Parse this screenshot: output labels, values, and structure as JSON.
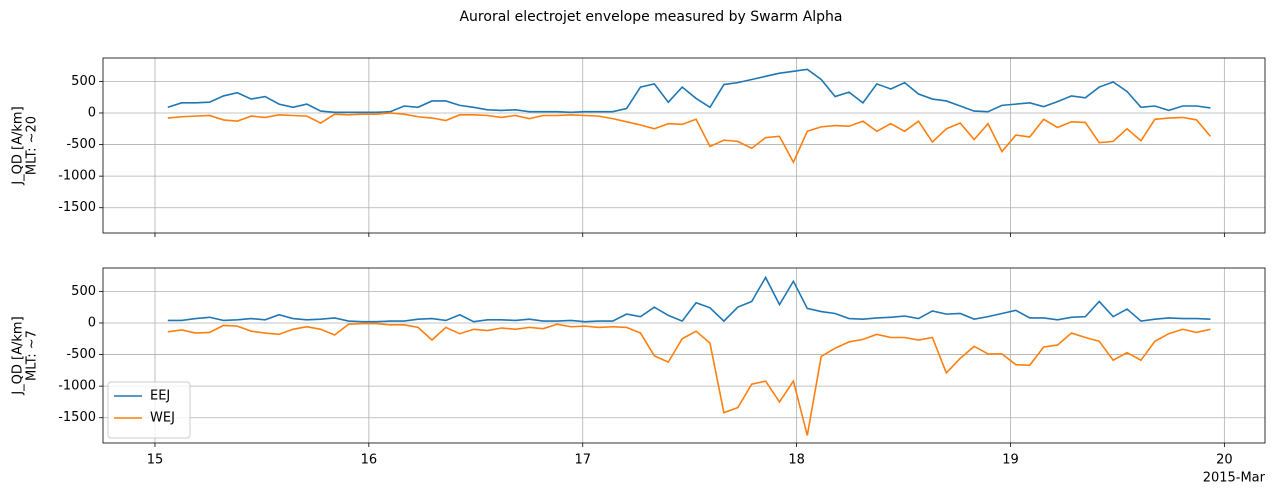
{
  "title": "Auroral electrojet envelope measured by Swarm Alpha",
  "chart_data": [
    {
      "type": "line",
      "ylabel": [
        "J_QD [A/km]",
        "MLT: ~20"
      ],
      "x": [
        15.06,
        15.125,
        15.19,
        15.255,
        15.32,
        15.385,
        15.45,
        15.515,
        15.58,
        15.645,
        15.71,
        15.775,
        15.84,
        15.905,
        15.97,
        16.035,
        16.1,
        16.165,
        16.23,
        16.295,
        16.36,
        16.425,
        16.49,
        16.555,
        16.62,
        16.685,
        16.75,
        16.815,
        16.88,
        16.945,
        17.01,
        17.075,
        17.14,
        17.205,
        17.27,
        17.335,
        17.4,
        17.465,
        17.53,
        17.595,
        17.66,
        17.725,
        17.79,
        17.855,
        17.92,
        17.985,
        18.05,
        18.115,
        18.18,
        18.245,
        18.31,
        18.375,
        18.44,
        18.505,
        18.57,
        18.635,
        18.7,
        18.765,
        18.83,
        18.895,
        18.96,
        19.025,
        19.09,
        19.155,
        19.22,
        19.285,
        19.35,
        19.415,
        19.48,
        19.545,
        19.61,
        19.675,
        19.74,
        19.805,
        19.87,
        19.935
      ],
      "series": [
        {
          "color": "#1f77b4",
          "values": [
            90,
            160,
            160,
            170,
            270,
            320,
            220,
            260,
            140,
            90,
            140,
            30,
            10,
            10,
            10,
            10,
            20,
            110,
            90,
            190,
            190,
            120,
            90,
            50,
            40,
            50,
            20,
            20,
            20,
            10,
            20,
            20,
            20,
            70,
            410,
            460,
            170,
            410,
            230,
            90,
            450,
            480,
            530,
            580,
            630,
            660,
            690,
            530,
            260,
            330,
            160,
            460,
            380,
            480,
            300,
            220,
            190,
            110,
            30,
            20,
            120,
            140,
            160,
            100,
            180,
            270,
            240,
            410,
            490,
            340,
            90,
            110,
            40,
            110,
            110,
            80
          ]
        },
        {
          "color": "#ff7f0e",
          "values": [
            -80,
            -60,
            -50,
            -40,
            -110,
            -130,
            -50,
            -70,
            -30,
            -40,
            -50,
            -160,
            -20,
            -30,
            -20,
            -20,
            0,
            -20,
            -60,
            -80,
            -120,
            -30,
            -30,
            -40,
            -70,
            -40,
            -90,
            -40,
            -40,
            -30,
            -40,
            -50,
            -90,
            -140,
            -190,
            -250,
            -170,
            -180,
            -100,
            -530,
            -430,
            -450,
            -560,
            -390,
            -370,
            -780,
            -290,
            -220,
            -200,
            -210,
            -130,
            -290,
            -170,
            -290,
            -130,
            -460,
            -250,
            -160,
            -420,
            -170,
            -610,
            -350,
            -380,
            -100,
            -230,
            -140,
            -150,
            -470,
            -450,
            -250,
            -440,
            -100,
            -80,
            -70,
            -110,
            -370
          ]
        }
      ],
      "xlim": [
        14.757,
        20.19
      ],
      "xticks": [
        15,
        16,
        17,
        18,
        19,
        20
      ],
      "ylim": [
        -1900,
        870
      ],
      "yticks": [
        -1500,
        -1000,
        -500,
        0,
        500
      ],
      "grid": true
    },
    {
      "type": "line",
      "ylabel": [
        "J_QD [A/km]",
        "MLT: ~7"
      ],
      "x_offset_label": "2015-Mar",
      "x": [
        15.06,
        15.125,
        15.19,
        15.255,
        15.32,
        15.385,
        15.45,
        15.515,
        15.58,
        15.645,
        15.71,
        15.775,
        15.84,
        15.905,
        15.97,
        16.035,
        16.1,
        16.165,
        16.23,
        16.295,
        16.36,
        16.425,
        16.49,
        16.555,
        16.62,
        16.685,
        16.75,
        16.815,
        16.88,
        16.945,
        17.01,
        17.075,
        17.14,
        17.205,
        17.27,
        17.335,
        17.4,
        17.465,
        17.53,
        17.595,
        17.66,
        17.725,
        17.79,
        17.855,
        17.92,
        17.985,
        18.05,
        18.115,
        18.18,
        18.245,
        18.31,
        18.375,
        18.44,
        18.505,
        18.57,
        18.635,
        18.7,
        18.765,
        18.83,
        18.895,
        18.96,
        19.025,
        19.09,
        19.155,
        19.22,
        19.285,
        19.35,
        19.415,
        19.48,
        19.545,
        19.61,
        19.675,
        19.74,
        19.805,
        19.87,
        19.935
      ],
      "series": [
        {
          "name": "EEJ",
          "color": "#1f77b4",
          "values": [
            40,
            40,
            70,
            90,
            40,
            50,
            70,
            50,
            130,
            70,
            50,
            60,
            80,
            30,
            20,
            20,
            30,
            30,
            60,
            70,
            40,
            130,
            20,
            50,
            50,
            40,
            60,
            30,
            30,
            40,
            20,
            30,
            30,
            140,
            100,
            250,
            120,
            30,
            320,
            240,
            30,
            250,
            340,
            720,
            290,
            660,
            230,
            180,
            150,
            70,
            60,
            80,
            90,
            110,
            70,
            190,
            140,
            150,
            60,
            100,
            150,
            200,
            80,
            80,
            50,
            90,
            100,
            340,
            100,
            220,
            30,
            60,
            80,
            70,
            70,
            60
          ]
        },
        {
          "name": "WEJ",
          "color": "#ff7f0e",
          "values": [
            -140,
            -110,
            -160,
            -150,
            -40,
            -50,
            -130,
            -160,
            -180,
            -100,
            -60,
            -100,
            -190,
            -20,
            -10,
            -10,
            -30,
            -30,
            -70,
            -270,
            -70,
            -170,
            -100,
            -120,
            -80,
            -100,
            -70,
            -90,
            -20,
            -60,
            -50,
            -70,
            -60,
            -70,
            -160,
            -520,
            -620,
            -250,
            -130,
            -320,
            -1420,
            -1340,
            -970,
            -920,
            -1250,
            -920,
            -1780,
            -530,
            -400,
            -300,
            -260,
            -180,
            -230,
            -230,
            -270,
            -230,
            -790,
            -560,
            -370,
            -490,
            -490,
            -660,
            -670,
            -380,
            -350,
            -160,
            -230,
            -290,
            -590,
            -470,
            -590,
            -290,
            -170,
            -100,
            -150,
            -100
          ]
        }
      ],
      "xlim": [
        14.757,
        20.19
      ],
      "xticks": [
        15,
        16,
        17,
        18,
        19,
        20
      ],
      "ylim": [
        -1900,
        870
      ],
      "yticks": [
        -1500,
        -1000,
        -500,
        0,
        500
      ],
      "grid": true,
      "legend": "lower left"
    }
  ]
}
